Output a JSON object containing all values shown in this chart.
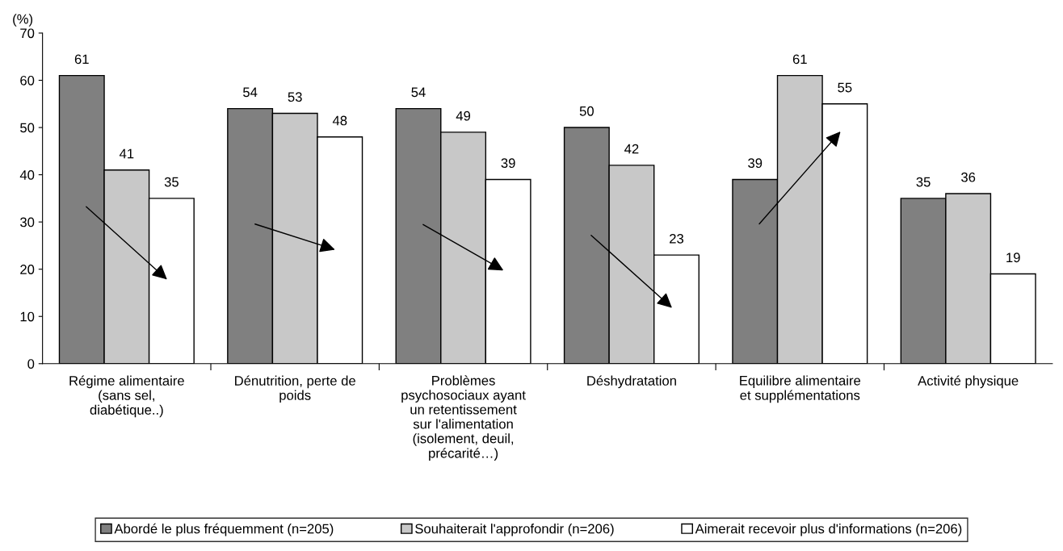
{
  "chart_data": {
    "type": "bar",
    "ylabel": "(%)",
    "categories": [
      "Régime alimentaire\n(sans sel,\ndiabétique..)",
      "Dénutrition, perte de\npoids",
      "Problèmes\npsychosociaux ayant\nun retentissement\nsur l'alimentation\n(isolement, deuil,\nprécarité…)",
      "Déshydratation",
      "Equilibre alimentaire\net supplémentations",
      "Activité physique"
    ],
    "series": [
      {
        "name": "Abordé le plus fréquemment (n=205)",
        "color": "#808080",
        "values": [
          61,
          54,
          54,
          50,
          39,
          35
        ]
      },
      {
        "name": "Souhaiterait l'approfondir (n=206)",
        "color": "#c8c8c8",
        "values": [
          41,
          53,
          49,
          42,
          61,
          36
        ]
      },
      {
        "name": "Aimerait recevoir plus d'informations (n=206)",
        "color": "#ffffff",
        "values": [
          35,
          48,
          39,
          23,
          55,
          19
        ]
      }
    ],
    "ylim": [
      0,
      70
    ],
    "yticks": [
      0,
      10,
      20,
      30,
      40,
      50,
      60,
      70
    ],
    "data_labels": true,
    "grid": false,
    "legend": "bottom"
  }
}
